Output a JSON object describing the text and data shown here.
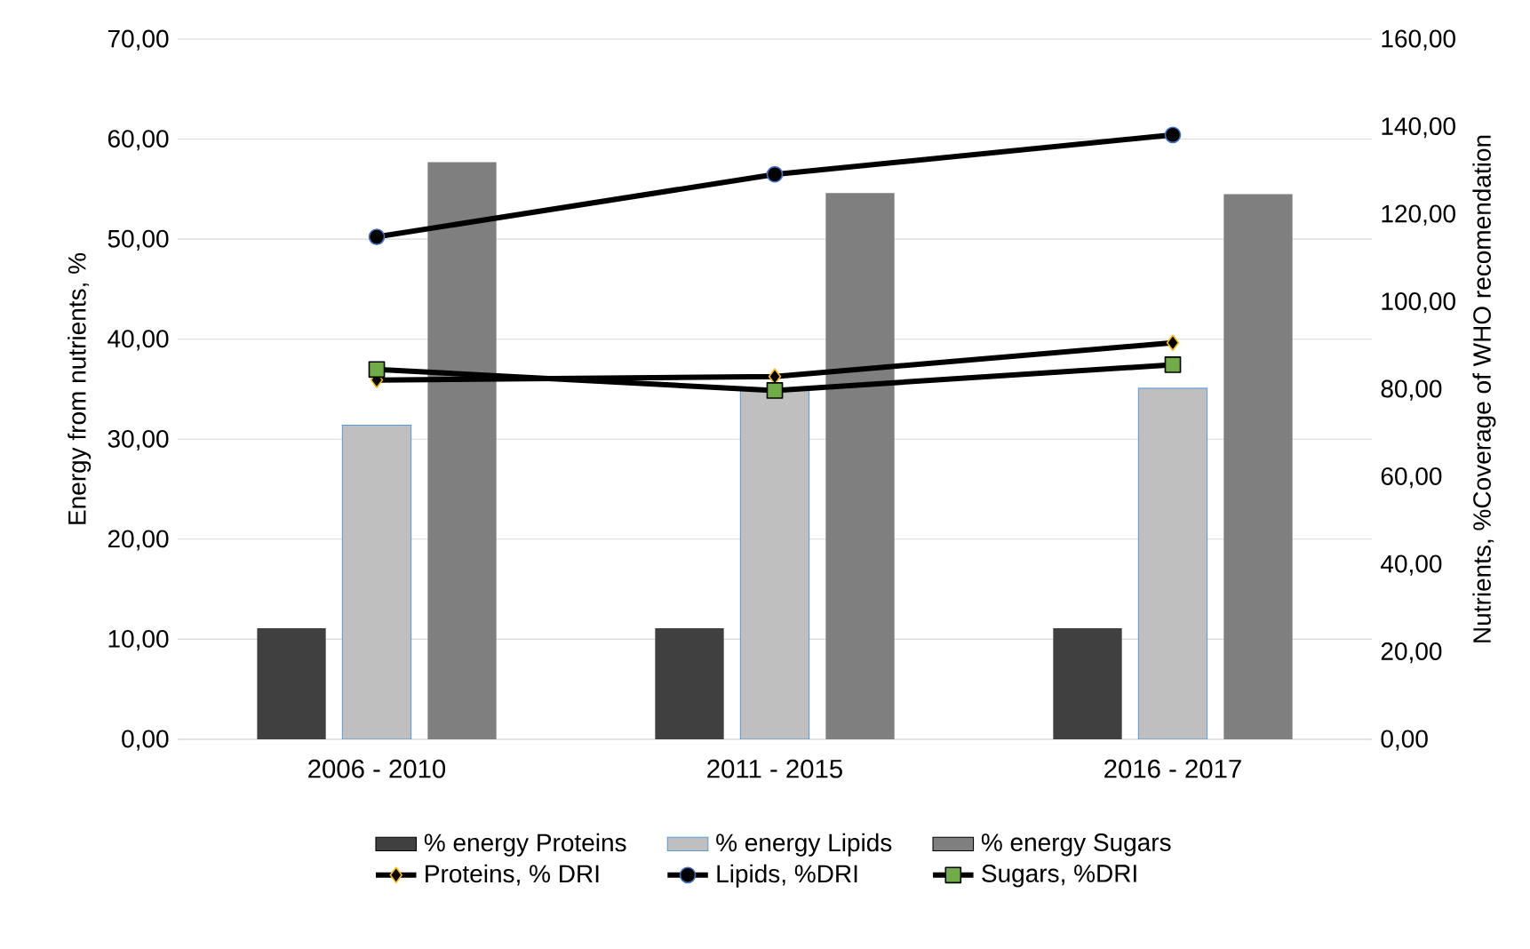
{
  "chart_data": {
    "type": "bar",
    "categories": [
      "2006 - 2010",
      "2011 - 2015",
      "2016 - 2017"
    ],
    "ylabel": "Energy from nutrients, %",
    "y2label": "Nutrients, %Coverage of WHO recomendation",
    "series": [
      {
        "name": "% energy  Proteins",
        "color": "#404040",
        "values": [
          11.1,
          11.1,
          11.1
        ]
      },
      {
        "name": "% energy Lipids",
        "color": "#bfbfbf",
        "values": [
          31.4,
          34.9,
          35.1
        ]
      },
      {
        "name": "% energy Sugars",
        "color": "#7f7f7f",
        "values": [
          57.7,
          54.6,
          54.5
        ]
      },
      {
        "name": "Proteins, % DRI",
        "type": "line",
        "axis": "y2",
        "marker": "diamond",
        "color": "#000000",
        "values": [
          82.1,
          82.9,
          90.6
        ]
      },
      {
        "name": "Lipids, %DRI",
        "type": "line",
        "axis": "y2",
        "marker": "circle",
        "color": "#000000",
        "values": [
          114.8,
          129.1,
          138.1
        ]
      },
      {
        "name": "Sugars, %DRI",
        "type": "line",
        "axis": "y2",
        "marker": "square",
        "color": "#000000",
        "values": [
          84.5,
          79.7,
          85.6
        ]
      }
    ],
    "ylim": [
      0,
      70
    ],
    "yticks": [
      {
        "value": 0,
        "label": "0,00"
      },
      {
        "value": 10,
        "label": "10,00"
      },
      {
        "value": 20,
        "label": "20,00"
      },
      {
        "value": 30,
        "label": "30,00"
      },
      {
        "value": 40,
        "label": "40,00"
      },
      {
        "value": 50,
        "label": "50,00"
      },
      {
        "value": 60,
        "label": "60,00"
      },
      {
        "value": 70,
        "label": "70,00"
      }
    ],
    "y2lim": [
      0,
      160
    ],
    "y2ticks": [
      {
        "value": 0,
        "label": "0,00"
      },
      {
        "value": 20,
        "label": "20,00"
      },
      {
        "value": 40,
        "label": "40,00"
      },
      {
        "value": 60,
        "label": "60,00"
      },
      {
        "value": 80,
        "label": "80,00"
      },
      {
        "value": 100,
        "label": "100,00"
      },
      {
        "value": 120,
        "label": "120,00"
      },
      {
        "value": 140,
        "label": "140,00"
      },
      {
        "value": 160,
        "label": "160,00"
      }
    ],
    "grid": "y",
    "legend": "bottom"
  }
}
